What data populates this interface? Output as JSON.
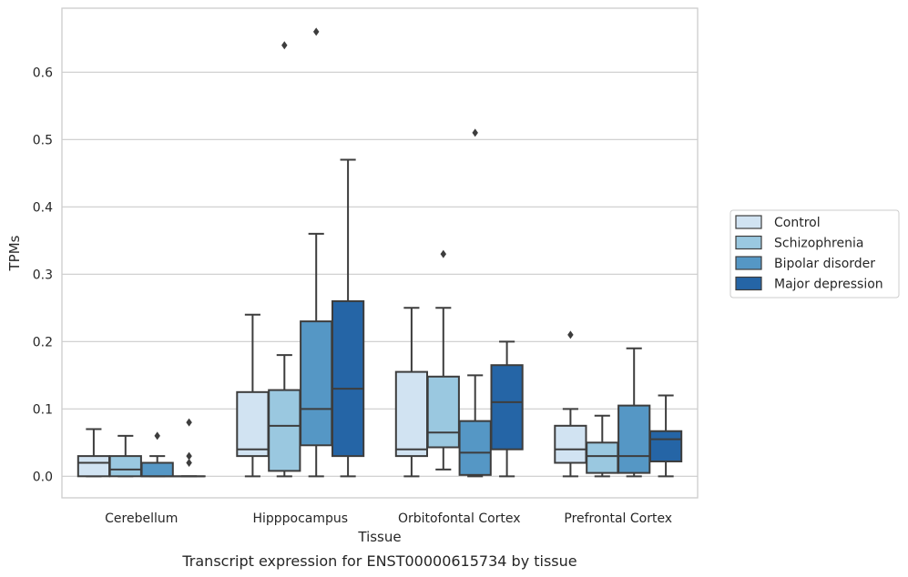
{
  "caption": "Transcript expression for ENST00000615734 by tissue",
  "chart_data": {
    "type": "boxplot",
    "title": "",
    "xlabel": "Tissue",
    "ylabel": "TPMs",
    "ylim": [
      -0.032,
      0.695
    ],
    "yticks": [
      0.0,
      0.1,
      0.2,
      0.3,
      0.4,
      0.5,
      0.6
    ],
    "yticklabels": [
      "0.0",
      "0.1",
      "0.2",
      "0.3",
      "0.4",
      "0.5",
      "0.6"
    ],
    "grid": "horizontal",
    "legend_position": "right",
    "categories": [
      "Cerebellum",
      "Hipppocampus",
      "Orbitofontal Cortex",
      "Prefrontal Cortex"
    ],
    "series": [
      {
        "name": "Control",
        "color": "#d1e3f2",
        "boxes": [
          {
            "whislo": 0.0,
            "q1": 0.0,
            "med": 0.02,
            "q3": 0.03,
            "whishi": 0.07,
            "fliers": []
          },
          {
            "whislo": 0.0,
            "q1": 0.03,
            "med": 0.04,
            "q3": 0.125,
            "whishi": 0.24,
            "fliers": []
          },
          {
            "whislo": 0.0,
            "q1": 0.03,
            "med": 0.04,
            "q3": 0.155,
            "whishi": 0.25,
            "fliers": []
          },
          {
            "whislo": 0.0,
            "q1": 0.02,
            "med": 0.04,
            "q3": 0.075,
            "whishi": 0.1,
            "fliers": [
              0.21
            ]
          }
        ]
      },
      {
        "name": "Schizophrenia",
        "color": "#9ac8e0",
        "boxes": [
          {
            "whislo": 0.0,
            "q1": 0.0,
            "med": 0.01,
            "q3": 0.03,
            "whishi": 0.06,
            "fliers": []
          },
          {
            "whislo": 0.0,
            "q1": 0.008,
            "med": 0.075,
            "q3": 0.128,
            "whishi": 0.18,
            "fliers": [
              0.64
            ]
          },
          {
            "whislo": 0.01,
            "q1": 0.043,
            "med": 0.065,
            "q3": 0.148,
            "whishi": 0.25,
            "fliers": [
              0.33
            ]
          },
          {
            "whislo": 0.0,
            "q1": 0.005,
            "med": 0.03,
            "q3": 0.05,
            "whishi": 0.09,
            "fliers": []
          }
        ]
      },
      {
        "name": "Bipolar disorder",
        "color": "#5597c5",
        "boxes": [
          {
            "whislo": 0.0,
            "q1": 0.0,
            "med": 0.0,
            "q3": 0.02,
            "whishi": 0.03,
            "fliers": [
              0.06
            ]
          },
          {
            "whislo": 0.0,
            "q1": 0.046,
            "med": 0.1,
            "q3": 0.23,
            "whishi": 0.36,
            "fliers": [
              0.66
            ]
          },
          {
            "whislo": 0.0,
            "q1": 0.002,
            "med": 0.035,
            "q3": 0.082,
            "whishi": 0.15,
            "fliers": [
              0.51
            ]
          },
          {
            "whislo": 0.0,
            "q1": 0.005,
            "med": 0.03,
            "q3": 0.105,
            "whishi": 0.19,
            "fliers": []
          }
        ]
      },
      {
        "name": "Major depression",
        "color": "#2565a6",
        "boxes": [
          {
            "whislo": 0.0,
            "q1": 0.0,
            "med": 0.0,
            "q3": 0.0,
            "whishi": 0.0,
            "fliers": [
              0.02,
              0.03,
              0.08
            ]
          },
          {
            "whislo": 0.0,
            "q1": 0.03,
            "med": 0.13,
            "q3": 0.26,
            "whishi": 0.47,
            "fliers": []
          },
          {
            "whislo": 0.0,
            "q1": 0.04,
            "med": 0.11,
            "q3": 0.165,
            "whishi": 0.2,
            "fliers": []
          },
          {
            "whislo": 0.0,
            "q1": 0.022,
            "med": 0.055,
            "q3": 0.067,
            "whishi": 0.12,
            "fliers": []
          }
        ]
      }
    ]
  }
}
